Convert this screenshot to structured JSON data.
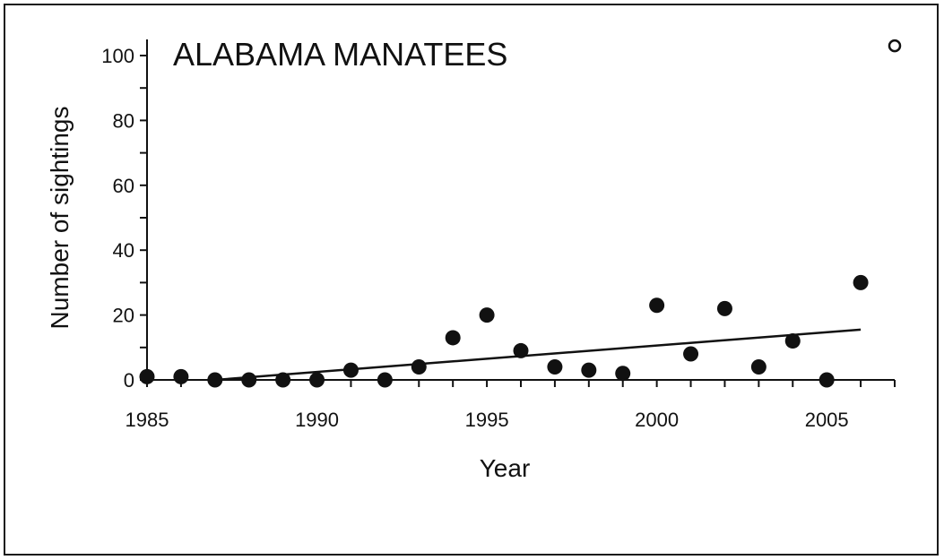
{
  "chart_data": {
    "type": "scatter",
    "title": "ALABAMA MANATEES",
    "xlabel": "Year",
    "ylabel": "Number of sightings",
    "xlim": [
      1985,
      2007
    ],
    "ylim": [
      0,
      100
    ],
    "x_ticks": [
      1985,
      1990,
      1995,
      2000,
      2005
    ],
    "y_ticks": [
      0,
      20,
      40,
      60,
      80,
      100
    ],
    "grid": false,
    "series": [
      {
        "marker": "filled-circle",
        "points": [
          {
            "x": 1985,
            "y": 1
          },
          {
            "x": 1986,
            "y": 1
          },
          {
            "x": 1987,
            "y": 0
          },
          {
            "x": 1988,
            "y": 0
          },
          {
            "x": 1989,
            "y": 0
          },
          {
            "x": 1990,
            "y": 0
          },
          {
            "x": 1991,
            "y": 3
          },
          {
            "x": 1992,
            "y": 0
          },
          {
            "x": 1993,
            "y": 4
          },
          {
            "x": 1994,
            "y": 13
          },
          {
            "x": 1995,
            "y": 20
          },
          {
            "x": 1996,
            "y": 9
          },
          {
            "x": 1997,
            "y": 4
          },
          {
            "x": 1998,
            "y": 3
          },
          {
            "x": 1999,
            "y": 2
          },
          {
            "x": 2000,
            "y": 23
          },
          {
            "x": 2001,
            "y": 8
          },
          {
            "x": 2002,
            "y": 22
          },
          {
            "x": 2003,
            "y": 4
          },
          {
            "x": 2004,
            "y": 12
          },
          {
            "x": 2005,
            "y": 0
          },
          {
            "x": 2006,
            "y": 30
          }
        ]
      },
      {
        "marker": "open-circle",
        "points": [
          {
            "x": 2007,
            "y": 103
          }
        ]
      }
    ],
    "trendline": {
      "type": "linear",
      "from": {
        "x": 1987,
        "y": 0
      },
      "to": {
        "x": 2006,
        "y": 15.5
      }
    }
  }
}
